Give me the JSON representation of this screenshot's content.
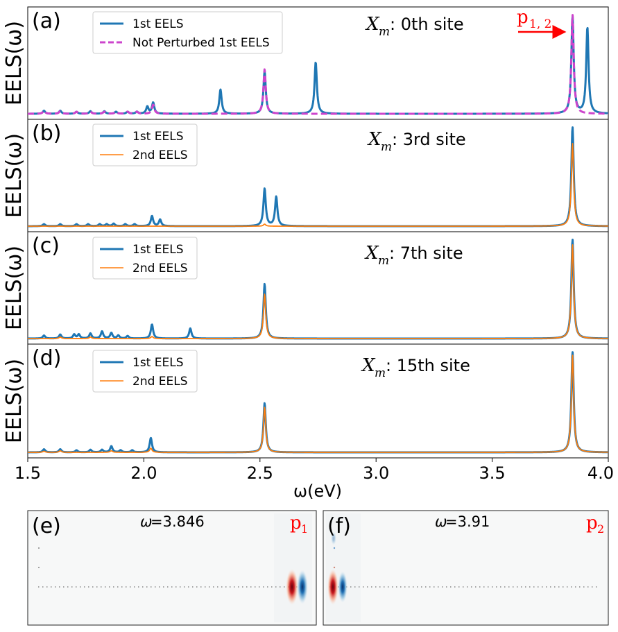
{
  "chart_data": [
    {
      "panel": "(a)",
      "type": "line",
      "site_label": ": 0th site",
      "site_symbol": "X",
      "site_sub": "m",
      "annotation": {
        "text": "p",
        "sub": "1, 2",
        "color": "#ff0000",
        "points_to_x": 3.846
      },
      "xlim": [
        1.5,
        4.0
      ],
      "ylabel": "EELS(ω)",
      "legend": {
        "position": "top-left",
        "entries": [
          "1st EELS",
          "Not Perturbed 1st EELS"
        ]
      },
      "series": [
        {
          "name": "1st EELS",
          "color": "#1f77b4",
          "style": "solid",
          "peaks": [
            [
              1.57,
              0.03
            ],
            [
              1.64,
              0.03
            ],
            [
              1.71,
              0.02
            ],
            [
              1.77,
              0.025
            ],
            [
              1.83,
              0.025
            ],
            [
              1.88,
              0.02
            ],
            [
              1.93,
              0.02
            ],
            [
              1.97,
              0.02
            ],
            [
              2.015,
              0.07
            ],
            [
              2.04,
              0.11
            ],
            [
              2.33,
              0.24
            ],
            [
              2.52,
              0.42
            ],
            [
              2.74,
              0.51
            ],
            [
              3.846,
              0.96
            ],
            [
              3.91,
              0.85
            ]
          ]
        },
        {
          "name": "Not Perturbed 1st EELS",
          "color": "#cc44cc",
          "style": "dashed",
          "peaks": [
            [
              1.57,
              0.03
            ],
            [
              1.64,
              0.025
            ],
            [
              1.71,
              0.02
            ],
            [
              1.77,
              0.02
            ],
            [
              1.83,
              0.02
            ],
            [
              1.88,
              0.02
            ],
            [
              1.93,
              0.02
            ],
            [
              1.97,
              0.02
            ],
            [
              2.04,
              0.09
            ],
            [
              2.52,
              0.44
            ],
            [
              3.846,
              0.98
            ]
          ]
        }
      ]
    },
    {
      "panel": "(b)",
      "type": "line",
      "site_label": ": 3rd site",
      "site_symbol": "X",
      "site_sub": "m",
      "xlim": [
        1.5,
        4.0
      ],
      "ylabel": "EELS(ω)",
      "legend": {
        "position": "top-left",
        "entries": [
          "1st EELS",
          "2nd EELS"
        ]
      },
      "series": [
        {
          "name": "1st EELS",
          "color": "#1f77b4",
          "style": "solid",
          "peaks": [
            [
              1.57,
              0.02
            ],
            [
              1.64,
              0.02
            ],
            [
              1.71,
              0.02
            ],
            [
              1.76,
              0.02
            ],
            [
              1.81,
              0.02
            ],
            [
              1.84,
              0.02
            ],
            [
              1.87,
              0.025
            ],
            [
              1.92,
              0.02
            ],
            [
              1.96,
              0.02
            ],
            [
              2.035,
              0.1
            ],
            [
              2.07,
              0.065
            ],
            [
              2.52,
              0.37
            ],
            [
              2.57,
              0.29
            ],
            [
              3.846,
              0.98
            ]
          ]
        },
        {
          "name": "2nd EELS",
          "color": "#ff7f0e",
          "style": "solid",
          "peaks": [
            [
              2.52,
              0.02
            ],
            [
              3.846,
              0.82
            ]
          ]
        }
      ]
    },
    {
      "panel": "(c)",
      "type": "line",
      "site_label": ": 7th site",
      "site_symbol": "X",
      "site_sub": "m",
      "xlim": [
        1.5,
        4.0
      ],
      "ylabel": "EELS(ω)",
      "legend": {
        "position": "top-left",
        "entries": [
          "1st EELS",
          "2nd EELS"
        ]
      },
      "series": [
        {
          "name": "1st EELS",
          "color": "#1f77b4",
          "style": "solid",
          "peaks": [
            [
              1.57,
              0.03
            ],
            [
              1.64,
              0.04
            ],
            [
              1.7,
              0.04
            ],
            [
              1.72,
              0.04
            ],
            [
              1.77,
              0.05
            ],
            [
              1.82,
              0.07
            ],
            [
              1.86,
              0.055
            ],
            [
              1.89,
              0.03
            ],
            [
              1.93,
              0.025
            ],
            [
              2.035,
              0.14
            ],
            [
              2.2,
              0.1
            ],
            [
              2.52,
              0.54
            ],
            [
              3.846,
              0.98
            ]
          ]
        },
        {
          "name": "2nd EELS",
          "color": "#ff7f0e",
          "style": "solid",
          "peaks": [
            [
              1.64,
              0.015
            ],
            [
              1.77,
              0.015
            ],
            [
              2.035,
              0.02
            ],
            [
              2.52,
              0.44
            ],
            [
              3.846,
              0.93
            ]
          ]
        }
      ]
    },
    {
      "panel": "(d)",
      "type": "line",
      "site_label": ": 15th site",
      "site_symbol": "X",
      "site_sub": "m",
      "xlim": [
        1.5,
        4.0
      ],
      "ylabel": "EELS(ω)",
      "xlabel": "ω(eV)",
      "xticks": [
        "1.5",
        "2.0",
        "2.5",
        "3.0",
        "3.5",
        "4.0"
      ],
      "legend": {
        "position": "top-left",
        "entries": [
          "1st EELS",
          "2nd EELS"
        ]
      },
      "series": [
        {
          "name": "1st EELS",
          "color": "#1f77b4",
          "style": "solid",
          "peaks": [
            [
              1.57,
              0.03
            ],
            [
              1.64,
              0.03
            ],
            [
              1.71,
              0.02
            ],
            [
              1.77,
              0.025
            ],
            [
              1.82,
              0.025
            ],
            [
              1.86,
              0.06
            ],
            [
              1.9,
              0.02
            ],
            [
              1.95,
              0.02
            ],
            [
              2.03,
              0.14
            ],
            [
              2.52,
              0.48
            ],
            [
              3.846,
              0.98
            ]
          ]
        },
        {
          "name": "2nd EELS",
          "color": "#ff7f0e",
          "style": "solid",
          "peaks": [
            [
              1.57,
              0.01
            ],
            [
              1.64,
              0.015
            ],
            [
              1.86,
              0.015
            ],
            [
              2.03,
              0.04
            ],
            [
              2.52,
              0.44
            ],
            [
              3.846,
              0.95
            ]
          ]
        }
      ]
    },
    {
      "panel": "(e)",
      "type": "heatmap",
      "omega_symbol": "ω",
      "omega_value": " =3.846",
      "mode_label": "p",
      "mode_sub": "1",
      "dipole_position": "right"
    },
    {
      "panel": "(f)",
      "type": "heatmap",
      "omega_symbol": "ω",
      "omega_value": " =3.91",
      "mode_label": "p",
      "mode_sub": "2",
      "dipole_position": "left"
    }
  ]
}
